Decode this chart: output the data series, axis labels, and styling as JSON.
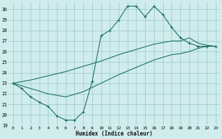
{
  "xlabel": "Humidex (Indice chaleur)",
  "bg_color": "#d0ecec",
  "grid_color": "#9ecece",
  "line_color": "#1a7060",
  "xlim": [
    -0.5,
    23.5
  ],
  "ylim": [
    19,
    30.7
  ],
  "yticks": [
    19,
    20,
    21,
    22,
    23,
    24,
    25,
    26,
    27,
    28,
    29,
    30
  ],
  "xticks": [
    0,
    1,
    2,
    3,
    4,
    5,
    6,
    7,
    8,
    9,
    10,
    11,
    12,
    13,
    14,
    15,
    16,
    17,
    18,
    19,
    20,
    21,
    22,
    23
  ],
  "line1_x": [
    0,
    1,
    2,
    3,
    4,
    5,
    6,
    7,
    8,
    9,
    10,
    11,
    12,
    13,
    14,
    15,
    16,
    17,
    18,
    19,
    20,
    21,
    22,
    23
  ],
  "line1_y": [
    23.0,
    22.5,
    21.7,
    21.2,
    20.8,
    19.9,
    19.5,
    19.5,
    20.3,
    23.2,
    27.5,
    28.0,
    29.0,
    30.3,
    30.3,
    29.3,
    30.3,
    29.5,
    28.3,
    27.3,
    26.8,
    26.5,
    26.5,
    26.5
  ],
  "line2_x": [
    0,
    2,
    4,
    6,
    8,
    10,
    12,
    14,
    16,
    18,
    19,
    20,
    21,
    22,
    23
  ],
  "line2_y": [
    23.0,
    23.3,
    23.7,
    24.1,
    24.6,
    25.1,
    25.7,
    26.2,
    26.7,
    27.0,
    27.0,
    27.3,
    26.8,
    26.6,
    26.5
  ],
  "line3_x": [
    0,
    2,
    4,
    6,
    8,
    10,
    12,
    14,
    16,
    18,
    19,
    20,
    21,
    22,
    23
  ],
  "line3_y": [
    23.0,
    22.5,
    22.0,
    21.7,
    22.2,
    23.0,
    23.8,
    24.5,
    25.2,
    25.7,
    25.8,
    26.0,
    26.3,
    26.5,
    26.5
  ]
}
